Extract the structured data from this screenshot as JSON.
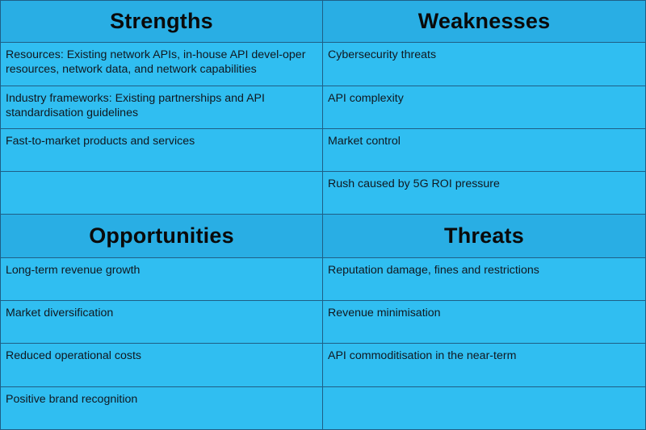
{
  "strengths": {
    "title": "Strengths",
    "items": [
      "Resources: Existing network APIs, in-house API devel-oper resources, network data, and network capabilities",
      "Industry frameworks: Existing partnerships and API standardisation guidelines",
      "Fast-to-market products and services",
      ""
    ]
  },
  "weaknesses": {
    "title": "Weaknesses",
    "items": [
      "Cybersecurity threats",
      "API complexity",
      "Market control",
      "Rush caused by 5G ROI pressure"
    ]
  },
  "opportunities": {
    "title": "Opportunities",
    "items": [
      "Long-term revenue growth",
      "Market diversification",
      "Reduced operational costs",
      "Positive brand recognition"
    ]
  },
  "threats": {
    "title": "Threats",
    "items": [
      "Reputation damage, fines and restrictions",
      "Revenue minimisation",
      "API commoditisation in the near-term",
      ""
    ]
  },
  "colors": {
    "header_bg": "#29aee4",
    "cell_bg": "#30bef1",
    "grid_line": "#1f5f86"
  }
}
